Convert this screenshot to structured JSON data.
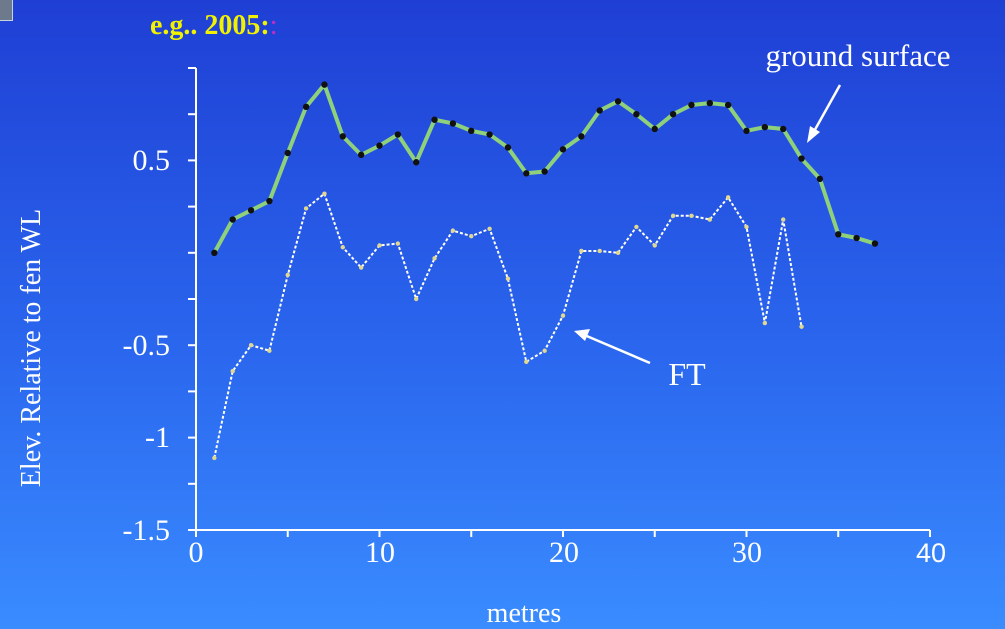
{
  "title": "e.g.. 2005:",
  "title_extra": ":",
  "chart_data": {
    "type": "line",
    "xlabel": "metres",
    "ylabel": "Elev. Relative to fen WL",
    "xlim": [
      0,
      40
    ],
    "ylim": [
      -1.5,
      1
    ],
    "x_ticks": [
      "0",
      "10",
      "20",
      "30",
      "40"
    ],
    "y_ticks": [
      "0.5",
      "-0.5",
      "-1",
      "-1.5"
    ],
    "grid": false,
    "series": [
      {
        "name": "ground surface",
        "color": "#8fd17a",
        "marker_color": "#111111",
        "x": [
          1,
          2,
          3,
          4,
          5,
          6,
          7,
          8,
          9,
          10,
          11,
          12,
          13,
          14,
          15,
          16,
          17,
          18,
          19,
          20,
          21,
          22,
          23,
          24,
          25,
          26,
          27,
          28,
          29,
          30,
          31,
          32,
          33,
          34,
          35,
          36,
          37
        ],
        "y": [
          0.0,
          0.18,
          0.23,
          0.28,
          0.54,
          0.79,
          0.91,
          0.63,
          0.53,
          0.58,
          0.64,
          0.49,
          0.72,
          0.7,
          0.66,
          0.64,
          0.57,
          0.43,
          0.44,
          0.56,
          0.63,
          0.77,
          0.82,
          0.75,
          0.67,
          0.75,
          0.8,
          0.81,
          0.8,
          0.66,
          0.68,
          0.67,
          0.51,
          0.4,
          0.1,
          0.08,
          0.05
        ]
      },
      {
        "name": "FT",
        "color": "#ffffff",
        "marker_color": "#e0d890",
        "x": [
          1,
          2,
          3,
          4,
          5,
          6,
          7,
          8,
          9,
          10,
          11,
          12,
          13,
          14,
          15,
          16,
          17,
          18,
          19,
          20,
          21,
          22,
          23,
          24,
          25,
          26,
          27,
          28,
          29,
          30,
          31,
          32,
          33
        ],
        "y": [
          -1.11,
          -0.64,
          -0.5,
          -0.53,
          -0.12,
          0.24,
          0.32,
          0.03,
          -0.08,
          0.04,
          0.05,
          -0.25,
          -0.03,
          0.12,
          0.09,
          0.13,
          -0.14,
          -0.59,
          -0.53,
          -0.34,
          0.01,
          0.01,
          0.0,
          0.14,
          0.04,
          0.2,
          0.2,
          0.18,
          0.3,
          0.14,
          -0.38,
          0.18,
          -0.4
        ]
      }
    ],
    "annotations": [
      {
        "text": "ground surface"
      },
      {
        "text": "FT"
      }
    ]
  }
}
